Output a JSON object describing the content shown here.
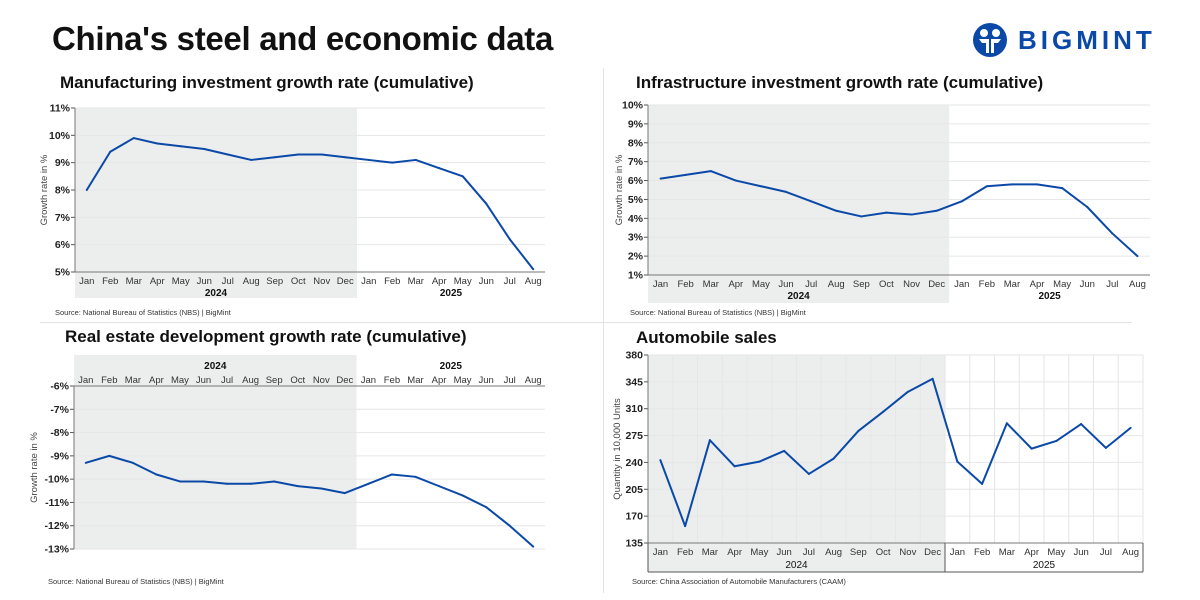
{
  "page": {
    "title": "China's steel and economic data",
    "logo_text": "BIGMINT",
    "brand_color": "#0b49a8"
  },
  "chart_data": [
    {
      "type": "line",
      "title": "Manufacturing investment growth rate (cumulative)",
      "ylabel": "Growth rate in %",
      "xlabel": "",
      "years": [
        "2024",
        "2025"
      ],
      "categories": [
        "Jan",
        "Feb",
        "Mar",
        "Apr",
        "May",
        "Jun",
        "Jul",
        "Aug",
        "Sep",
        "Oct",
        "Nov",
        "Dec",
        "Jan",
        "Feb",
        "Mar",
        "Apr",
        "May",
        "Jun",
        "Jul",
        "Aug"
      ],
      "values": [
        8.0,
        9.4,
        9.9,
        9.7,
        9.6,
        9.5,
        9.3,
        9.1,
        9.2,
        9.3,
        9.3,
        9.2,
        9.1,
        9.0,
        9.1,
        8.8,
        8.5,
        7.5,
        6.2,
        5.1
      ],
      "yticks": [
        "5%",
        "6%",
        "7%",
        "8%",
        "9%",
        "10%",
        "11%"
      ],
      "ylim": [
        5,
        11
      ],
      "grid": true,
      "shaded_period": "2024",
      "source": "Source: National Bureau of Statistics (NBS) |  BigMint",
      "line_color": "#0b49a8"
    },
    {
      "type": "line",
      "title": "Infrastructure investment growth rate (cumulative)",
      "ylabel": "Growth rate in %",
      "xlabel": "",
      "years": [
        "2024",
        "2025"
      ],
      "categories": [
        "Jan",
        "Feb",
        "Mar",
        "Apr",
        "May",
        "Jun",
        "Jul",
        "Aug",
        "Sep",
        "Oct",
        "Nov",
        "Dec",
        "Jan",
        "Feb",
        "Mar",
        "Apr",
        "May",
        "Jun",
        "Jul",
        "Aug"
      ],
      "values": [
        6.1,
        6.3,
        6.5,
        6.0,
        5.7,
        5.4,
        4.9,
        4.4,
        4.1,
        4.3,
        4.2,
        4.4,
        4.9,
        5.7,
        5.8,
        5.8,
        5.6,
        4.6,
        3.2,
        2.0
      ],
      "yticks": [
        "1%",
        "2%",
        "3%",
        "4%",
        "5%",
        "6%",
        "7%",
        "8%",
        "9%",
        "10%"
      ],
      "ylim": [
        1,
        10
      ],
      "grid": true,
      "shaded_period": "2024",
      "source": "Source: National Bureau of Statistics (NBS) |  BigMint",
      "line_color": "#0b49a8"
    },
    {
      "type": "line",
      "title": "Real estate development growth rate (cumulative)",
      "ylabel": "Growth rate in %",
      "xlabel": "",
      "years": [
        "2024",
        "2025"
      ],
      "categories": [
        "Jan",
        "Feb",
        "Mar",
        "Apr",
        "May",
        "Jun",
        "Jul",
        "Aug",
        "Sep",
        "Oct",
        "Nov",
        "Dec",
        "Jan",
        "Feb",
        "Mar",
        "Apr",
        "May",
        "Jun",
        "Jul",
        "Aug"
      ],
      "values": [
        -9.3,
        -9.0,
        -9.3,
        -9.8,
        -10.1,
        -10.1,
        -10.2,
        -10.2,
        -10.1,
        -10.3,
        -10.4,
        -10.6,
        -10.2,
        -9.8,
        -9.9,
        -10.3,
        -10.7,
        -11.2,
        -12.0,
        -12.9
      ],
      "yticks": [
        "-13%",
        "-12%",
        "-11%",
        "-10%",
        "-9%",
        "-8%",
        "-7%",
        "-6%"
      ],
      "ylim": [
        -13,
        -6
      ],
      "grid": true,
      "x_axis_position": "top",
      "shaded_period": "2024",
      "source": "Source: National Bureau of Statistics (NBS) |  BigMint",
      "line_color": "#0b49a8"
    },
    {
      "type": "line",
      "title": "Automobile sales",
      "ylabel": "Quantity in 10,000 Units",
      "xlabel": "",
      "years": [
        "2024",
        "2025"
      ],
      "categories": [
        "Jan",
        "Feb",
        "Mar",
        "Apr",
        "May",
        "Jun",
        "Jul",
        "Aug",
        "Sep",
        "Oct",
        "Nov",
        "Dec",
        "Jan",
        "Feb",
        "Mar",
        "Apr",
        "May",
        "Jun",
        "Jul",
        "Aug"
      ],
      "values": [
        243,
        157,
        269,
        235,
        241,
        255,
        225,
        245,
        281,
        306,
        332,
        349,
        241,
        212,
        291,
        258,
        268,
        290,
        259,
        285
      ],
      "yticks": [
        "135",
        "170",
        "205",
        "240",
        "275",
        "310",
        "345",
        "380"
      ],
      "ylim": [
        135,
        380
      ],
      "grid": true,
      "shaded_period": "2024",
      "source": "Source: China Association of Automobile Manufacturers (CAAM)",
      "line_color": "#0b49a8"
    }
  ]
}
